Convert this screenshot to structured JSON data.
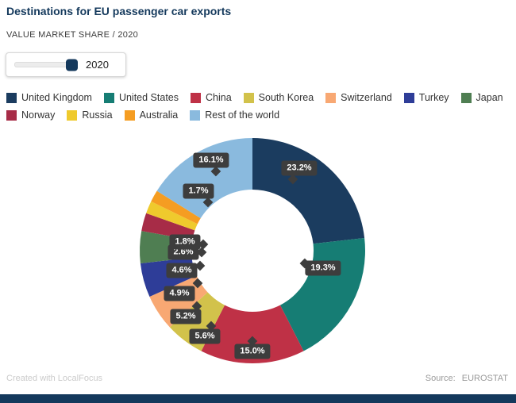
{
  "header": {
    "title": "Destinations for EU passenger car exports",
    "subtitle": "VALUE MARKET SHARE / 2020"
  },
  "slider": {
    "value": "2020"
  },
  "theme": {
    "accent": "#14395c",
    "tooltip_bg": "#3d3d3d"
  },
  "chart_data": {
    "type": "pie",
    "donut": true,
    "unit": "%",
    "legend_position": "top",
    "title": "Destinations for EU passenger car exports",
    "subtitle": "VALUE MARKET SHARE / 2020",
    "categories": [
      "United Kingdom",
      "United States",
      "China",
      "South Korea",
      "Switzerland",
      "Turkey",
      "Japan",
      "Norway",
      "Russia",
      "Australia",
      "Rest of the world"
    ],
    "values": [
      23.2,
      19.3,
      15.0,
      5.6,
      5.2,
      4.9,
      4.6,
      2.6,
      1.8,
      1.7,
      16.1
    ],
    "labels": [
      "23.2%",
      "19.3%",
      "15.0%",
      "5.6%",
      "5.2%",
      "4.9%",
      "4.6%",
      "2.6%",
      "1.8%",
      "1.7%",
      "16.1%"
    ],
    "colors": [
      "#1b3c5f",
      "#167d74",
      "#bf3146",
      "#d2c24b",
      "#f8a873",
      "#2e3d98",
      "#4f7e52",
      "#a72c47",
      "#efca2d",
      "#f59d22",
      "#8abade"
    ]
  },
  "footer": {
    "credit": "Created with LocalFocus",
    "source_label": "Source:",
    "source_value": "EUROSTAT"
  }
}
